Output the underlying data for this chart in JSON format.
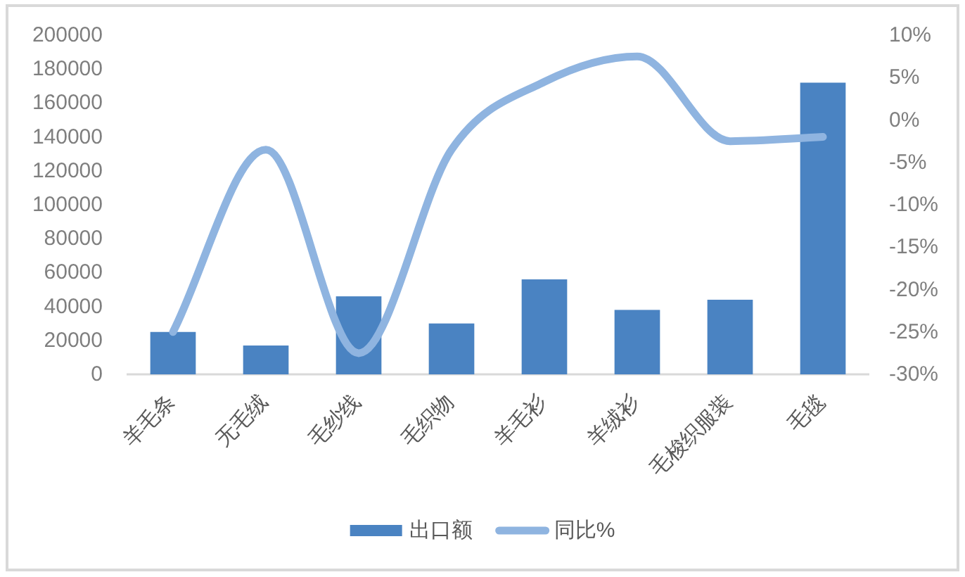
{
  "chart_data": {
    "type": "bar",
    "categories": [
      "羊毛条",
      "无毛绒",
      "毛纱线",
      "毛织物",
      "羊毛衫",
      "羊绒衫",
      "毛梭织服装",
      "毛毯"
    ],
    "series": [
      {
        "name": "出口额",
        "color": "#4a83c2",
        "values": [
          25000,
          17000,
          46000,
          30000,
          56000,
          38000,
          44000,
          172000
        ]
      },
      {
        "name": "同比%",
        "type": "line",
        "axis": "y2",
        "color": "#8fb4e0",
        "values": [
          -25,
          -3.5,
          -27.5,
          -3.5,
          4.5,
          7.5,
          -2.5,
          -2
        ]
      }
    ],
    "ylim": [
      0,
      200000
    ],
    "yticks": [
      0,
      20000,
      40000,
      60000,
      80000,
      100000,
      120000,
      140000,
      160000,
      180000,
      200000
    ],
    "y2lim": [
      -30,
      10
    ],
    "y2ticks": [
      {
        "value": -30,
        "label": "-30%"
      },
      {
        "value": -25,
        "label": "-25%"
      },
      {
        "value": -20,
        "label": "-20%"
      },
      {
        "value": -15,
        "label": "-15%"
      },
      {
        "value": -10,
        "label": "-10%"
      },
      {
        "value": -5,
        "label": "-5%"
      },
      {
        "value": 0,
        "label": "0%"
      },
      {
        "value": 5,
        "label": "5%"
      },
      {
        "value": 10,
        "label": "10%"
      }
    ],
    "legend": "bottom"
  }
}
